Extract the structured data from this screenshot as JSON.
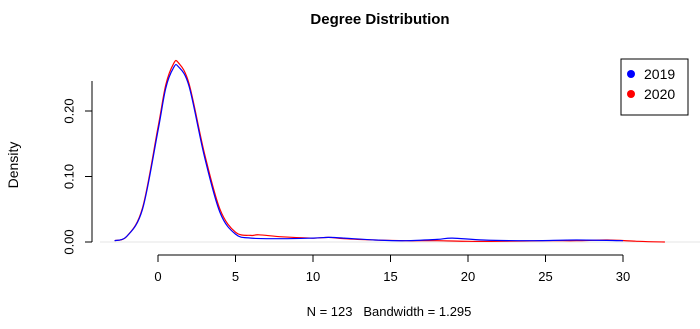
{
  "chart_data": {
    "type": "line",
    "title": "Degree Distribution",
    "xlabel": "N = 123   Bandwidth = 1.295",
    "ylabel": "Density",
    "xlim": [
      -3.0,
      32.7
    ],
    "ylim": [
      0.0,
      0.285
    ],
    "xticks": [
      0,
      5,
      10,
      15,
      20,
      25,
      30
    ],
    "xtick_labels": [
      "0",
      "5",
      "10",
      "15",
      "20",
      "25",
      "30"
    ],
    "yticks": [
      0.0,
      0.1,
      0.2
    ],
    "ytick_labels": [
      "0.00",
      "0.10",
      "0.20"
    ],
    "grid": false,
    "legend_position": "top-right",
    "colors": {
      "2019": "#0000ff",
      "2020": "#ff0000",
      "baseline": "#e6e6e6"
    },
    "series": [
      {
        "name": "2019",
        "color": "#0000ff",
        "x": [
          -2.8,
          -2.0,
          -1.0,
          0.0,
          0.5,
          1.0,
          1.3,
          2.0,
          3.0,
          4.0,
          5.0,
          6.0,
          8.0,
          10.0,
          11.0,
          12.0,
          14.0,
          16.0,
          18.0,
          19.0,
          21.0,
          24.0,
          27.0,
          30.0
        ],
        "y": [
          0.002,
          0.009,
          0.05,
          0.17,
          0.235,
          0.266,
          0.268,
          0.238,
          0.13,
          0.045,
          0.012,
          0.006,
          0.005,
          0.006,
          0.007,
          0.006,
          0.003,
          0.002,
          0.004,
          0.006,
          0.003,
          0.002,
          0.003,
          0.002
        ]
      },
      {
        "name": "2020",
        "color": "#ff0000",
        "x": [
          -2.8,
          -2.0,
          -1.0,
          0.0,
          0.5,
          1.0,
          1.3,
          2.0,
          3.0,
          4.0,
          5.0,
          6.0,
          6.5,
          8.0,
          10.0,
          11.0,
          12.0,
          14.0,
          16.0,
          18.0,
          20.0,
          22.0,
          25.0,
          27.0,
          29.0,
          31.0,
          32.7
        ],
        "y": [
          0.002,
          0.009,
          0.052,
          0.175,
          0.24,
          0.272,
          0.274,
          0.242,
          0.135,
          0.05,
          0.015,
          0.01,
          0.011,
          0.008,
          0.006,
          0.007,
          0.005,
          0.003,
          0.002,
          0.002,
          0.001,
          0.001,
          0.002,
          0.002,
          0.003,
          0.001,
          0.0
        ]
      }
    ]
  }
}
